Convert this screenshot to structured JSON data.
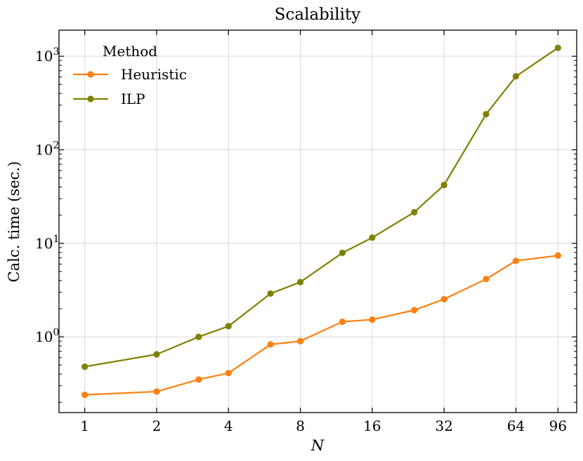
{
  "chart_data": {
    "type": "line",
    "title": "Scalability",
    "xlabel": "N",
    "ylabel": "Calc. time (sec.)",
    "xscale": "log2",
    "yscale": "log10",
    "xlim": [
      0.78,
      115
    ],
    "ylim": [
      0.155,
      1900
    ],
    "x_ticks": [
      {
        "value": 1,
        "label": "1"
      },
      {
        "value": 2,
        "label": "2"
      },
      {
        "value": 4,
        "label": "4"
      },
      {
        "value": 8,
        "label": "8"
      },
      {
        "value": 16,
        "label": "16"
      },
      {
        "value": 32,
        "label": "32"
      },
      {
        "value": 64,
        "label": "64"
      },
      {
        "value": 96,
        "label": "96"
      }
    ],
    "y_ticks": [
      {
        "value": 1,
        "base": "10",
        "exp": "0"
      },
      {
        "value": 10,
        "base": "10",
        "exp": "1"
      },
      {
        "value": 100,
        "base": "10",
        "exp": "2"
      },
      {
        "value": 1000,
        "base": "10",
        "exp": "3"
      }
    ],
    "grid": true,
    "legend": {
      "title": "Method",
      "position": "top-left"
    },
    "x": [
      1,
      2,
      3,
      4,
      6,
      8,
      12,
      16,
      24,
      32,
      48,
      64,
      96
    ],
    "series": [
      {
        "name": "Heuristic",
        "color": "#ff7f0e",
        "values": [
          0.24,
          0.26,
          0.35,
          0.41,
          0.83,
          0.9,
          1.45,
          1.53,
          1.93,
          2.53,
          4.15,
          6.5,
          7.4
        ]
      },
      {
        "name": "ILP",
        "color": "#808000",
        "values": [
          0.48,
          0.65,
          1.0,
          1.3,
          2.9,
          3.85,
          7.9,
          11.5,
          21.5,
          42,
          240,
          610,
          1230
        ]
      }
    ]
  }
}
